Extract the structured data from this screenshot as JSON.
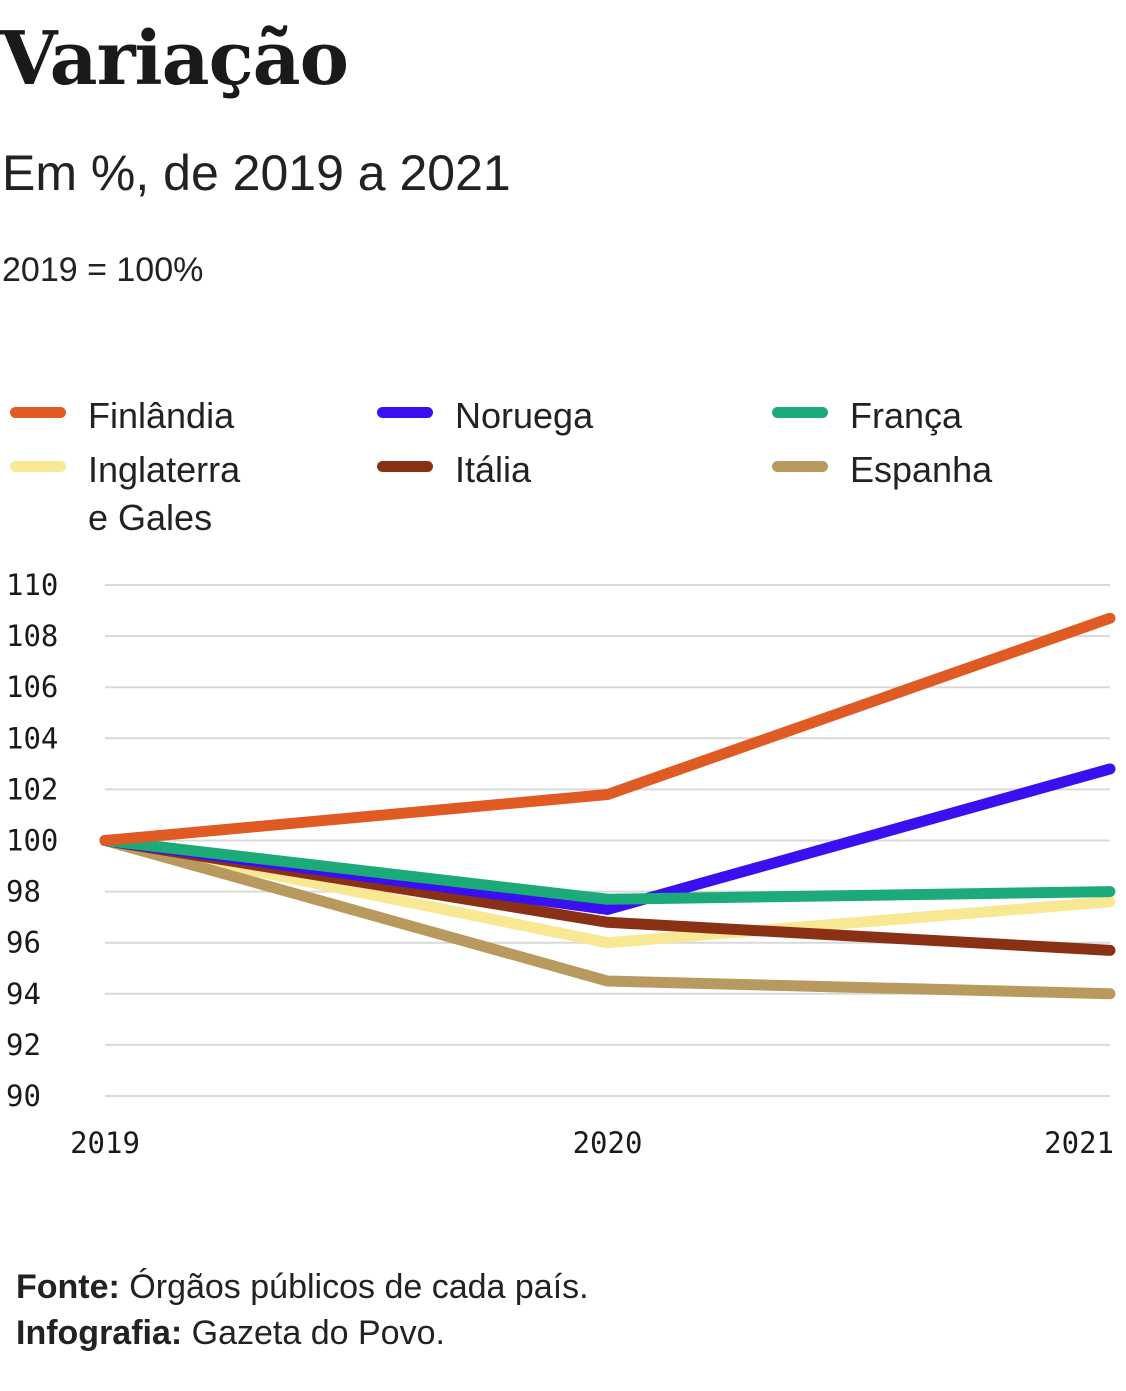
{
  "title": "Variação",
  "subtitle": "Em %, de 2019 a 2021",
  "note": "2019 = 100%",
  "legend": [
    {
      "label": "Finlândia",
      "color": "#e05a24"
    },
    {
      "label": "Noruega",
      "color": "#3a10f0"
    },
    {
      "label": "França",
      "color": "#1cab78"
    },
    {
      "label": "Inglaterra\ne Gales",
      "color": "#f8e894"
    },
    {
      "label": "Itália",
      "color": "#8a3015"
    },
    {
      "label": "Espanha",
      "color": "#b99a5e"
    }
  ],
  "chart_data": {
    "type": "line",
    "x": [
      "2019",
      "2020",
      "2021"
    ],
    "ylim": [
      90,
      110
    ],
    "yticks": [
      "110",
      "108",
      "106",
      "104",
      "102",
      "100",
      "98",
      "96",
      "94",
      "92",
      "90"
    ],
    "grid": true,
    "legend_position": "top",
    "series": [
      {
        "name": "Inglaterra e Gales",
        "color": "#f8e894",
        "values": [
          100,
          96.0,
          97.6
        ]
      },
      {
        "name": "Espanha",
        "color": "#b99a5e",
        "values": [
          100,
          94.5,
          94.0
        ]
      },
      {
        "name": "Itália",
        "color": "#8a3015",
        "values": [
          100,
          96.8,
          95.7
        ]
      },
      {
        "name": "Noruega",
        "color": "#3a10f0",
        "values": [
          100,
          97.3,
          102.8
        ]
      },
      {
        "name": "França",
        "color": "#1cab78",
        "values": [
          100,
          97.7,
          98.0
        ]
      },
      {
        "name": "Finlândia",
        "color": "#e05a24",
        "values": [
          100,
          101.8,
          108.7
        ]
      }
    ]
  },
  "footer": {
    "source_label": "Fonte:",
    "source_text": " Órgãos públicos de cada país.",
    "credit_label": "Infografia:",
    "credit_text": " Gazeta do Povo."
  }
}
